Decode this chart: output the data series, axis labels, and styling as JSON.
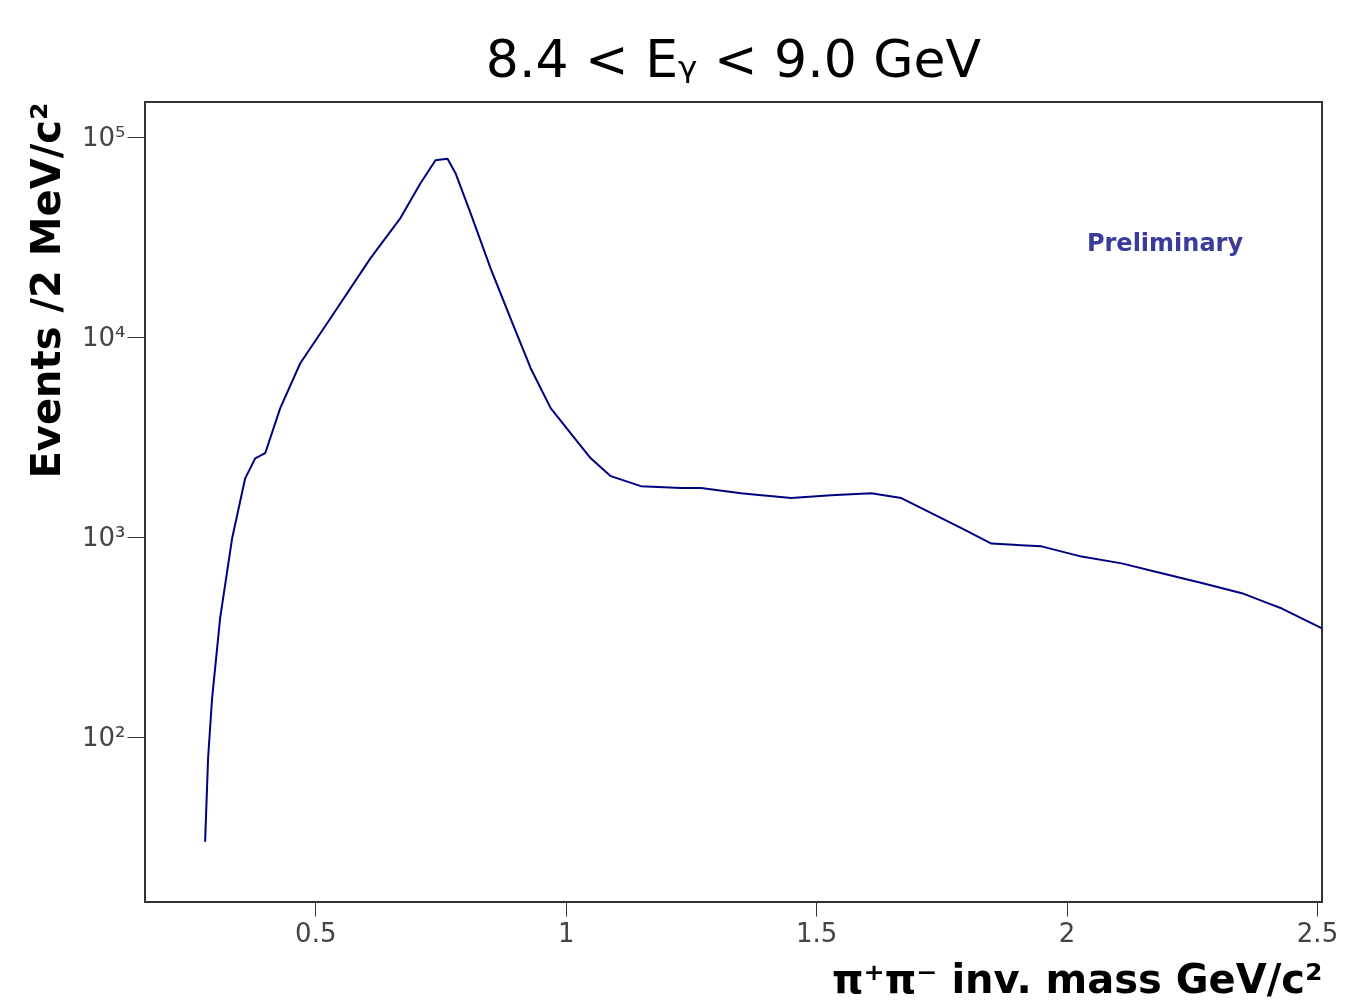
{
  "chart_data": {
    "type": "line",
    "title": "8.4 < Eᵧ < 9.0 GeV",
    "xlabel": "π⁺π⁻ inv. mass GeV/c²",
    "ylabel": "Events /2 MeV/c²",
    "annotations": [
      "Preliminary"
    ],
    "x": [
      0.28,
      0.286,
      0.294,
      0.31,
      0.334,
      0.36,
      0.38,
      0.4,
      0.43,
      0.47,
      0.53,
      0.61,
      0.67,
      0.71,
      0.74,
      0.764,
      0.78,
      0.81,
      0.85,
      0.89,
      0.93,
      0.97,
      1.01,
      1.05,
      1.09,
      1.15,
      1.23,
      1.27,
      1.35,
      1.45,
      1.53,
      1.61,
      1.67,
      1.73,
      1.79,
      1.85,
      1.95,
      2.03,
      2.11,
      2.19,
      2.27,
      2.35,
      2.43,
      2.51
    ],
    "series": [
      {
        "color": "#000080",
        "values": [
          30,
          79,
          157,
          394,
          989,
          1970,
          2480,
          2630,
          4420,
          7410,
          12400,
          24800,
          39400,
          58900,
          76700,
          78000,
          66100,
          41700,
          22100,
          12400,
          7000,
          4420,
          3310,
          2480,
          2020,
          1800,
          1760,
          1760,
          1660,
          1570,
          1620,
          1660,
          1570,
          1320,
          1110,
          930,
          900,
          800,
          740,
          660,
          590,
          525,
          440,
          350
        ]
      }
    ],
    "xlim": [
      0.16,
      2.51
    ],
    "xticks": [
      0.5,
      1,
      1.5,
      2,
      2.5
    ],
    "ylim": [
      15,
      150000
    ],
    "yticks": [
      {
        "value": 100,
        "label": "10²"
      },
      {
        "value": 1000,
        "label": "10³"
      },
      {
        "value": 10000,
        "label": "10⁴"
      },
      {
        "value": 100000,
        "label": "10⁵"
      }
    ],
    "log": true,
    "grid": false,
    "marker": "none",
    "line_style": "solid"
  }
}
